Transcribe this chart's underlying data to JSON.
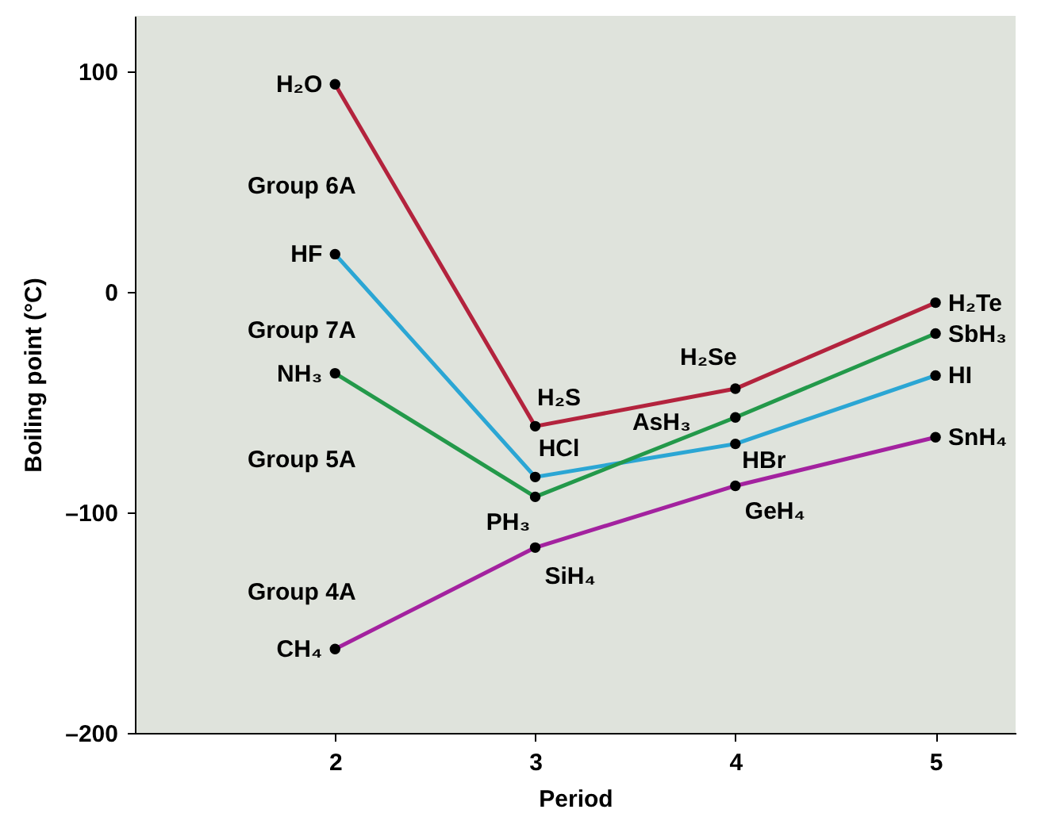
{
  "chart_data": {
    "type": "line",
    "xlabel": "Period",
    "ylabel": "Boiling point (°C)",
    "x": [
      2,
      3,
      4,
      5
    ],
    "xlim": [
      1,
      5.4
    ],
    "xticks": [
      2,
      3,
      4,
      5
    ],
    "ylim": [
      -200,
      125
    ],
    "yticks": [
      100,
      0,
      {
        "value": -100,
        "label": "–100"
      },
      {
        "value": -200,
        "label": "–200"
      }
    ],
    "grid": false,
    "marker": "circle",
    "line_style": "solid",
    "series": [
      {
        "name": "Group 6A",
        "color": "#b3233d",
        "values": [
          94,
          -61,
          -44,
          -5
        ]
      },
      {
        "name": "Group 7A",
        "color": "#2ba6d4",
        "values": [
          17,
          -84,
          -69,
          -38
        ]
      },
      {
        "name": "Group 5A",
        "color": "#23994a",
        "values": [
          -37,
          -93,
          -57,
          -19
        ]
      },
      {
        "name": "Group 4A",
        "color": "#a3229f",
        "values": [
          -162,
          -116,
          -88,
          -66
        ]
      }
    ],
    "annotations": [
      {
        "text": "H₂O",
        "x": 2,
        "y": 94
      },
      {
        "text": "HF",
        "x": 2,
        "y": 17
      },
      {
        "text": "NH₃",
        "x": 2,
        "y": -37
      },
      {
        "text": "CH₄",
        "x": 2,
        "y": -162
      },
      {
        "text": "H₂S",
        "x": 3,
        "y": -61
      },
      {
        "text": "HCl",
        "x": 3,
        "y": -84
      },
      {
        "text": "PH₃",
        "x": 3,
        "y": -93
      },
      {
        "text": "SiH₄",
        "x": 3,
        "y": -116
      },
      {
        "text": "H₂Se",
        "x": 4,
        "y": -44
      },
      {
        "text": "AsH₃",
        "x": 4,
        "y": -57
      },
      {
        "text": "HBr",
        "x": 4,
        "y": -69
      },
      {
        "text": "GeH₄",
        "x": 4,
        "y": -88
      },
      {
        "text": "H₂Te",
        "x": 5,
        "y": -5
      },
      {
        "text": "SbH₃",
        "x": 5,
        "y": -19
      },
      {
        "text": "HI",
        "x": 5,
        "y": -38
      },
      {
        "text": "SnH₄",
        "x": 5,
        "y": -66
      }
    ]
  }
}
